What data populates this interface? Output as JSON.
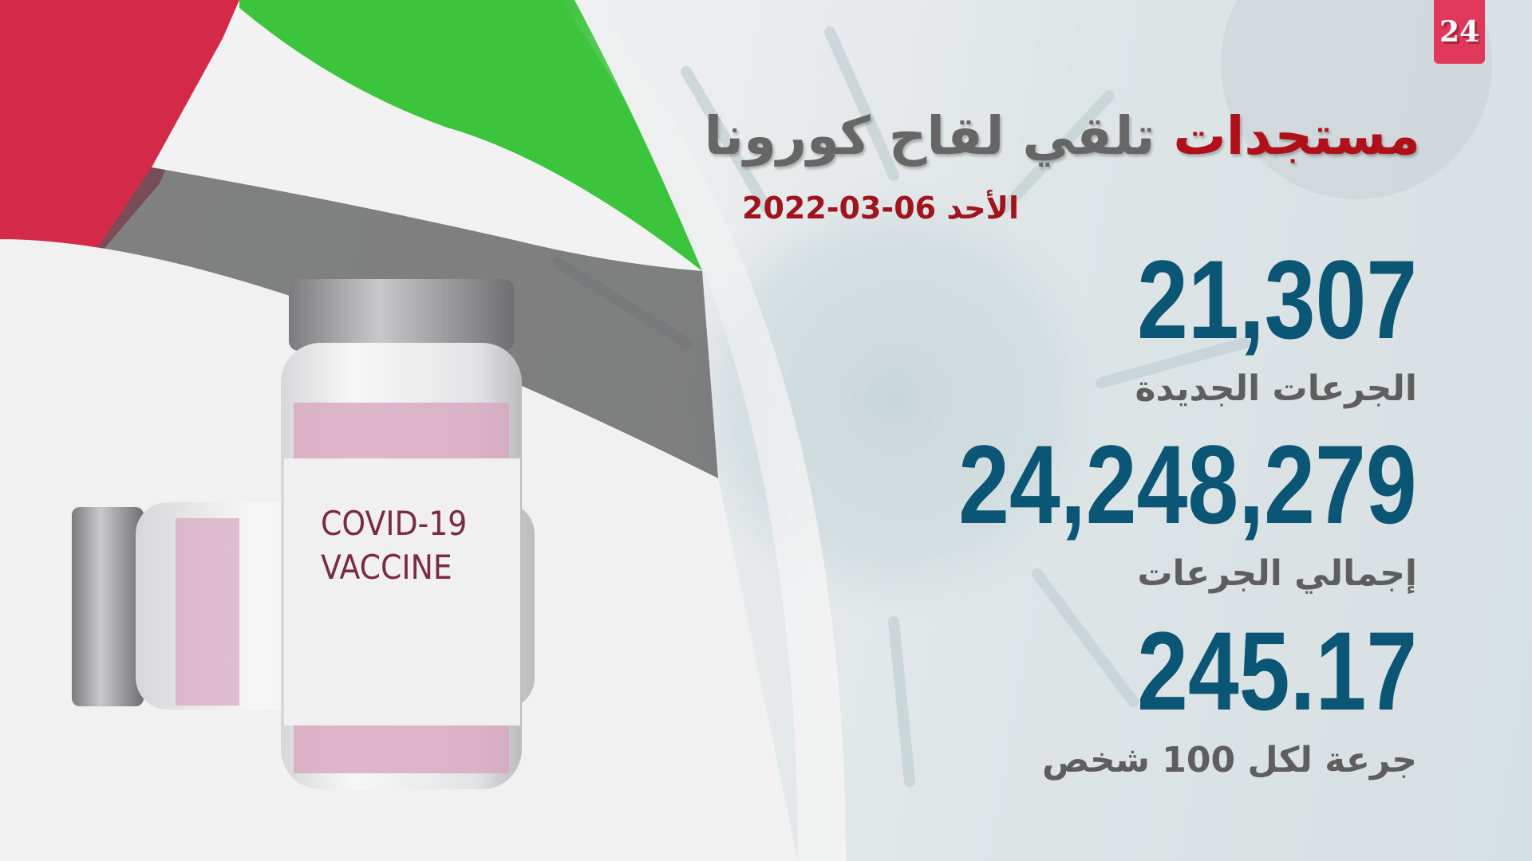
{
  "logo": {
    "text": "24",
    "color": "#e0385a"
  },
  "title": {
    "accent": "مستجدات",
    "rest": "تلقي لقاح كورونا",
    "accent_color": "#b01019"
  },
  "date": {
    "day": "الأحد",
    "value": "2022-03-06"
  },
  "stats": [
    {
      "value": "21,307",
      "label": "الجرعات الجديدة"
    },
    {
      "value": "24,248,279",
      "label": "إجمالي الجرعات"
    },
    {
      "value": "245.17",
      "label": "جرعة لكل 100 شخص"
    }
  ],
  "vial": {
    "line1": "COVID-19",
    "line2": "VACCINE"
  },
  "colors": {
    "number": "#0b5575",
    "label": "#5e5e5e",
    "flag_red": "#d42a4a",
    "flag_green": "#3cc43c",
    "flag_black": "#333333"
  }
}
